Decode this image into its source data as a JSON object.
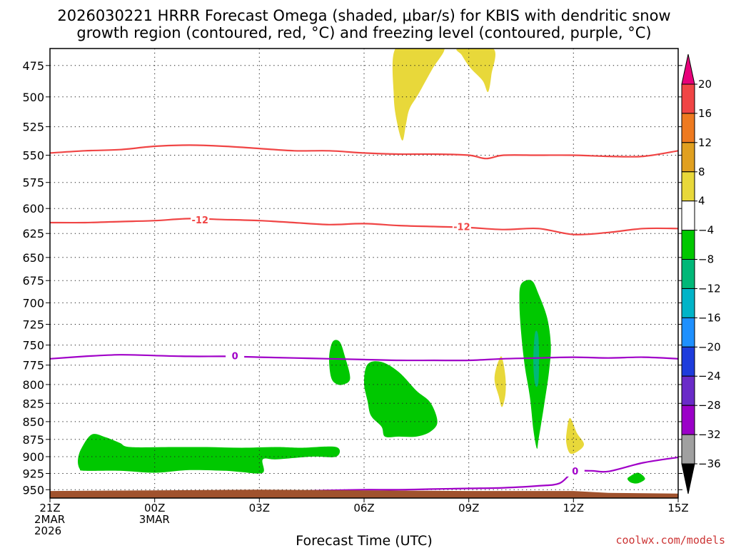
{
  "title_line1": "2026030221 HRRR Forecast Omega (shaded, μbar/s) for KBIS with dendritic snow",
  "title_line2": "growth region (contoured, red, °C) and freezing level (contoured, purple, °C)",
  "credit": "coolwx.com/models",
  "chart_data": {
    "type": "contour",
    "xlabel": "Forecast Time (UTC)",
    "ylabel": "",
    "x_range_hours": [
      0,
      18
    ],
    "y_range_hpa": [
      462,
      963
    ],
    "y_scale": "log",
    "y_inverted": true,
    "grid": true,
    "y_ticks": [
      475,
      500,
      525,
      550,
      575,
      600,
      625,
      650,
      675,
      700,
      725,
      750,
      775,
      800,
      825,
      850,
      875,
      900,
      925,
      950
    ],
    "x_ticks": [
      {
        "hour": 0,
        "lines": [
          "21Z",
          "2MAR",
          "2026"
        ]
      },
      {
        "hour": 3,
        "lines": [
          "00Z",
          "3MAR"
        ]
      },
      {
        "hour": 6,
        "lines": [
          "03Z"
        ]
      },
      {
        "hour": 9,
        "lines": [
          "06Z"
        ]
      },
      {
        "hour": 12,
        "lines": [
          "09Z"
        ]
      },
      {
        "hour": 15,
        "lines": [
          "12Z"
        ]
      },
      {
        "hour": 18,
        "lines": [
          "15Z"
        ]
      }
    ],
    "colorbar": {
      "levels": [
        "20",
        "16",
        "12",
        "8",
        "4",
        "−4",
        "−8",
        "−12",
        "−16",
        "−20",
        "−24",
        "−28",
        "−32",
        "−36"
      ],
      "colors": [
        "#e7007a",
        "#f04545",
        "#ee7a20",
        "#e0a020",
        "#e8d83a",
        "#ffffff",
        "#00c800",
        "#00b878",
        "#00b4c8",
        "#1e90ff",
        "#1e3cdc",
        "#6a2bc8",
        "#9b00c8",
        "#a0a0a0",
        "#000000"
      ]
    },
    "contours": [
      {
        "name": "dgz_minus12_lower",
        "color": "#f04545",
        "label": "-12",
        "points": [
          [
            0,
            614
          ],
          [
            1,
            614
          ],
          [
            2,
            613
          ],
          [
            3,
            612
          ],
          [
            4,
            610
          ],
          [
            5,
            611
          ],
          [
            6,
            612
          ],
          [
            7,
            614
          ],
          [
            8,
            616
          ],
          [
            9,
            615
          ],
          [
            10,
            617
          ],
          [
            11,
            618
          ],
          [
            12,
            619
          ],
          [
            13,
            621
          ],
          [
            14,
            620
          ],
          [
            15,
            626
          ],
          [
            16,
            624
          ],
          [
            17,
            620
          ],
          [
            18,
            620
          ]
        ],
        "label_at": [
          [
            4.3,
            611
          ],
          [
            11.8,
            618
          ]
        ]
      },
      {
        "name": "dgz_upper",
        "color": "#f04545",
        "label": "",
        "points": [
          [
            0,
            548
          ],
          [
            1,
            546
          ],
          [
            2,
            545
          ],
          [
            3,
            542
          ],
          [
            4,
            541
          ],
          [
            5,
            542
          ],
          [
            6,
            544
          ],
          [
            7,
            546
          ],
          [
            8,
            546
          ],
          [
            9,
            548
          ],
          [
            10,
            549
          ],
          [
            11,
            549
          ],
          [
            12,
            550
          ],
          [
            12.5,
            553
          ],
          [
            13,
            550
          ],
          [
            14,
            550
          ],
          [
            15,
            550
          ],
          [
            16,
            551
          ],
          [
            17,
            551
          ],
          [
            18,
            546
          ]
        ],
        "label_at": []
      },
      {
        "name": "freezing_level_upper",
        "color": "#a000c8",
        "label": "0",
        "points": [
          [
            0,
            767
          ],
          [
            1,
            764
          ],
          [
            2,
            762
          ],
          [
            3,
            763
          ],
          [
            4,
            764
          ],
          [
            5,
            764
          ],
          [
            6,
            765
          ],
          [
            7,
            766
          ],
          [
            8,
            767
          ],
          [
            9,
            768
          ],
          [
            10,
            769
          ],
          [
            11,
            769
          ],
          [
            12,
            769
          ],
          [
            13,
            767
          ],
          [
            14,
            766
          ],
          [
            15,
            765
          ],
          [
            16,
            766
          ],
          [
            17,
            765
          ],
          [
            18,
            767
          ]
        ],
        "label_at": [
          [
            5.3,
            763
          ]
        ]
      },
      {
        "name": "freezing_level_lower",
        "color": "#a000c8",
        "label": "0",
        "points": [
          [
            7.3,
            952
          ],
          [
            8,
            951
          ],
          [
            9,
            950
          ],
          [
            10,
            950
          ],
          [
            11,
            949
          ],
          [
            12,
            948
          ],
          [
            13,
            947
          ],
          [
            14,
            944
          ],
          [
            14.6,
            940
          ],
          [
            15,
            923
          ],
          [
            15.5,
            921
          ],
          [
            16,
            922
          ],
          [
            17,
            909
          ],
          [
            18,
            901
          ]
        ],
        "label_at": [
          [
            15.05,
            921
          ]
        ]
      }
    ],
    "filled_regions": [
      {
        "color": "#00c800",
        "points": [
          [
            1.2,
            868
          ],
          [
            1.6,
            872
          ],
          [
            2,
            880
          ],
          [
            2.3,
            886
          ],
          [
            3.5,
            886
          ],
          [
            4.5,
            886
          ],
          [
            5.5,
            887
          ],
          [
            6.5,
            886
          ],
          [
            7.2,
            887
          ],
          [
            8.2,
            886
          ],
          [
            8.2,
            900
          ],
          [
            7.5,
            900
          ],
          [
            6.5,
            904
          ],
          [
            6.1,
            904
          ],
          [
            6.1,
            924
          ],
          [
            5.5,
            923
          ],
          [
            5,
            921
          ],
          [
            4,
            920
          ],
          [
            3,
            924
          ],
          [
            2,
            921
          ],
          [
            1,
            921
          ],
          [
            0.85,
            918
          ],
          [
            0.8,
            905
          ],
          [
            0.9,
            888
          ]
        ]
      },
      {
        "color": "#00c800",
        "points": [
          [
            8.1,
            746
          ],
          [
            8.3,
            746
          ],
          [
            8.45,
            764
          ],
          [
            8.6,
            792
          ],
          [
            8.4,
            800
          ],
          [
            8.2,
            799
          ],
          [
            8.05,
            790
          ],
          [
            8.0,
            765
          ]
        ]
      },
      {
        "color": "#00c800",
        "points": [
          [
            9.1,
            774
          ],
          [
            9.5,
            771
          ],
          [
            10.0,
            784
          ],
          [
            10.5,
            808
          ],
          [
            10.9,
            824
          ],
          [
            11.1,
            850
          ],
          [
            10.9,
            864
          ],
          [
            10.5,
            871
          ],
          [
            10,
            871
          ],
          [
            9.6,
            871
          ],
          [
            9.5,
            857
          ],
          [
            9.2,
            842
          ],
          [
            9.1,
            822
          ],
          [
            9.0,
            798
          ]
        ]
      },
      {
        "color": "#00c800",
        "points": [
          [
            13.5,
            679
          ],
          [
            13.8,
            675
          ],
          [
            14.0,
            690
          ],
          [
            14.25,
            718
          ],
          [
            14.35,
            750
          ],
          [
            14.3,
            783
          ],
          [
            14.15,
            830
          ],
          [
            14.0,
            875
          ],
          [
            13.95,
            888
          ],
          [
            13.85,
            861
          ],
          [
            13.75,
            816
          ],
          [
            13.6,
            775
          ],
          [
            13.5,
            735
          ],
          [
            13.45,
            700
          ]
        ]
      },
      {
        "color": "#00c800",
        "points": [
          [
            16.6,
            930
          ],
          [
            16.85,
            924
          ],
          [
            17.05,
            933
          ],
          [
            16.85,
            940
          ],
          [
            16.65,
            939
          ],
          [
            16.55,
            934
          ]
        ]
      },
      {
        "color": "#00b878",
        "points": [
          [
            13.9,
            735
          ],
          [
            14.0,
            742
          ],
          [
            14.0,
            795
          ],
          [
            13.9,
            800
          ],
          [
            13.85,
            770
          ]
        ]
      },
      {
        "color": "#e8d83a",
        "points": [
          [
            10.75,
            462
          ],
          [
            11.3,
            462
          ],
          [
            10.95,
            478
          ],
          [
            10.55,
            498
          ],
          [
            10.3,
            510
          ],
          [
            10.2,
            523
          ],
          [
            10.1,
            537
          ],
          [
            9.95,
            522
          ],
          [
            9.85,
            499
          ],
          [
            9.9,
            462
          ]
        ]
      },
      {
        "color": "#e8d83a",
        "points": [
          [
            11.7,
            462
          ],
          [
            12.7,
            462
          ],
          [
            12.65,
            482
          ],
          [
            12.55,
            496
          ],
          [
            12.4,
            487
          ],
          [
            12.05,
            477
          ],
          [
            11.8,
            467
          ]
        ]
      },
      {
        "color": "#e8d83a",
        "points": [
          [
            12.85,
            770
          ],
          [
            12.95,
            765
          ],
          [
            13.05,
            790
          ],
          [
            13.05,
            813
          ],
          [
            12.95,
            830
          ],
          [
            12.85,
            814
          ],
          [
            12.75,
            798
          ],
          [
            12.75,
            786
          ]
        ]
      },
      {
        "color": "#e8d83a",
        "points": [
          [
            14.9,
            845
          ],
          [
            15.1,
            866
          ],
          [
            15.3,
            882
          ],
          [
            15.1,
            893
          ],
          [
            14.9,
            895
          ],
          [
            14.8,
            882
          ],
          [
            14.8,
            866
          ]
        ]
      }
    ],
    "terrain": {
      "color": "#a0522d",
      "top_points": [
        [
          0,
          952
        ],
        [
          3,
          951
        ],
        [
          6,
          950
        ],
        [
          9,
          951
        ],
        [
          12,
          952
        ],
        [
          15,
          952
        ],
        [
          16,
          955
        ],
        [
          18,
          956
        ]
      ]
    }
  }
}
